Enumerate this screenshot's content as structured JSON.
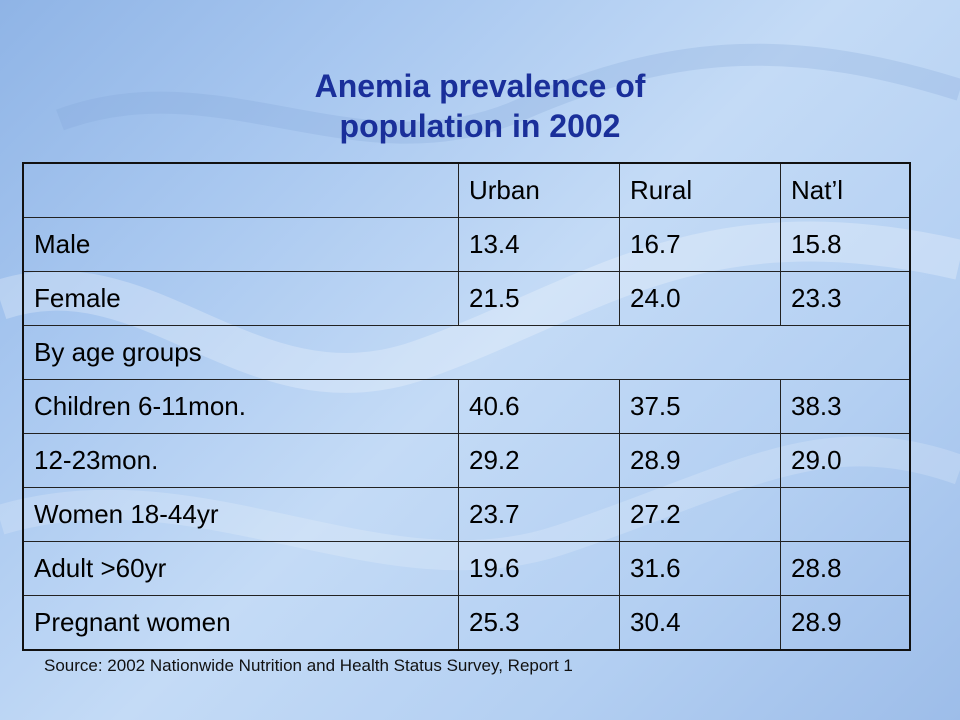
{
  "title": {
    "line1": "Anemia prevalence of",
    "line2": "population in 2002"
  },
  "table": {
    "headers": [
      "",
      "Urban",
      "Rural",
      "Nat’l"
    ],
    "rows": [
      {
        "label": "Male",
        "urban": "13.4",
        "rural": "16.7",
        "natl": "15.8"
      },
      {
        "label": "Female",
        "urban": "21.5",
        "rural": "24.0",
        "natl": "23.3"
      },
      {
        "label": "By age groups"
      },
      {
        "label": "Children 6-11mon.",
        "urban": "40.6",
        "rural": "37.5",
        "natl": "38.3"
      },
      {
        "label": "12-23mon.",
        "urban": "29.2",
        "rural": "28.9",
        "natl": "29.0"
      },
      {
        "label": "Women 18-44yr",
        "urban": "23.7",
        "rural": "27.2",
        "natl": ""
      },
      {
        "label": "Adult >60yr",
        "urban": "19.6",
        "rural": "31.6",
        "natl": "28.8"
      },
      {
        "label": "Pregnant women",
        "urban": "25.3",
        "rural": "30.4",
        "natl": "28.9"
      }
    ]
  },
  "source": "Source: 2002 Nationwide Nutrition and Health Status Survey, Report 1",
  "colors": {
    "title": "#1a2f9a",
    "highlight": "#ee5a10",
    "text": "#000000"
  }
}
